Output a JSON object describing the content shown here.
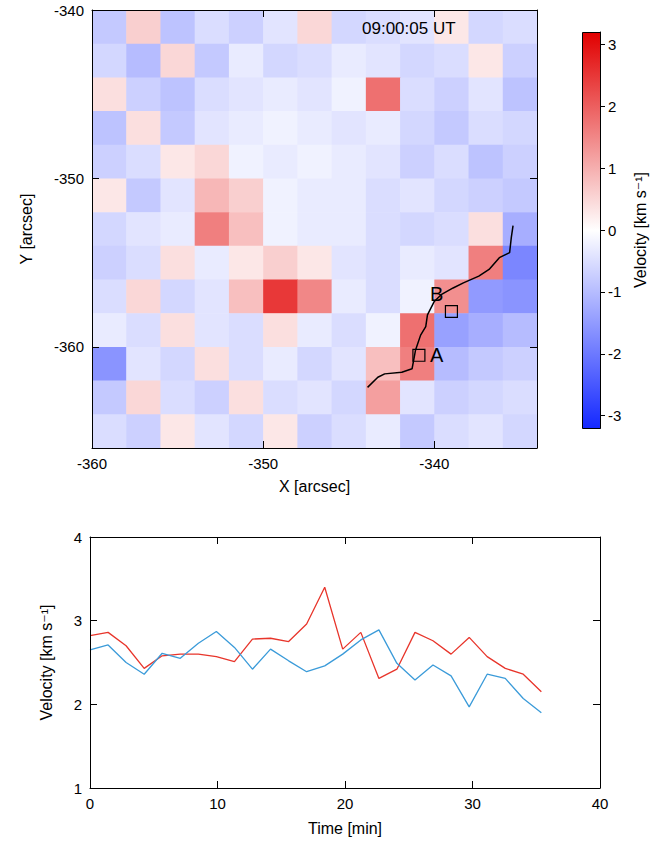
{
  "chart_data": [
    {
      "type": "heatmap",
      "xlabel": "X [arcsec]",
      "ylabel": "Y [arcsec]",
      "xlim": [
        -360,
        -334
      ],
      "ylim": [
        -366,
        -340
      ],
      "xticks": [
        -360,
        -350,
        -340
      ],
      "yticks": [
        -360,
        -350,
        -340
      ],
      "annotations": [
        "09:00:05 UT"
      ],
      "cells": {
        "x": [
          -359,
          -357,
          -355,
          -353,
          -351,
          -349,
          -347,
          -345,
          -343,
          -341,
          -339,
          -337,
          -335
        ],
        "y": [
          -341,
          -343,
          -345,
          -347,
          -349,
          -351,
          -353,
          -355,
          -357,
          -359,
          -361,
          -363,
          -365
        ],
        "values": [
          [
            -0.8,
            0.6,
            -0.9,
            -0.5,
            -0.7,
            -0.4,
            0.5,
            -0.6,
            -0.5,
            -0.4,
            0.3,
            -0.6,
            -0.5
          ],
          [
            -0.6,
            -1.0,
            0.5,
            -0.8,
            -0.3,
            -0.6,
            -0.5,
            -0.3,
            -0.4,
            -0.6,
            -0.5,
            0.3,
            -0.7
          ],
          [
            0.4,
            -0.7,
            -0.9,
            -0.5,
            -0.4,
            -0.3,
            -0.4,
            -0.2,
            1.8,
            -0.5,
            -0.7,
            -0.4,
            -0.9
          ],
          [
            -0.9,
            0.4,
            -0.8,
            -0.4,
            -0.3,
            -0.2,
            -0.3,
            -0.4,
            -0.3,
            -0.6,
            -0.8,
            -0.5,
            -0.6
          ],
          [
            -0.7,
            -0.5,
            0.3,
            0.5,
            -0.2,
            -0.3,
            -0.2,
            -0.3,
            -0.4,
            -0.7,
            -0.5,
            -0.9,
            -0.7
          ],
          [
            0.3,
            -0.8,
            -0.4,
            0.9,
            0.6,
            -0.2,
            -0.3,
            -0.3,
            -0.5,
            -0.4,
            -0.6,
            -0.7,
            -0.8
          ],
          [
            -0.6,
            -0.4,
            -0.3,
            1.6,
            0.8,
            -0.2,
            -0.3,
            -0.3,
            -0.5,
            -0.6,
            -0.5,
            0.4,
            -1.2
          ],
          [
            -0.7,
            -0.5,
            0.4,
            -0.3,
            0.3,
            0.6,
            0.3,
            -0.4,
            -0.5,
            -0.3,
            -0.4,
            1.6,
            -1.8
          ],
          [
            -0.5,
            0.5,
            -0.6,
            -0.4,
            0.8,
            2.5,
            1.5,
            -0.3,
            -0.5,
            -0.2,
            1.4,
            -1.5,
            -1.6
          ],
          [
            -0.3,
            -0.5,
            0.4,
            -0.4,
            -0.5,
            0.4,
            -0.3,
            -0.5,
            -0.2,
            1.8,
            -1.4,
            -1.2,
            -1.0
          ],
          [
            -1.6,
            -0.4,
            -0.6,
            0.4,
            -0.5,
            -0.3,
            -0.6,
            -0.4,
            0.8,
            1.6,
            -1.0,
            -0.8,
            -0.7
          ],
          [
            -0.8,
            0.5,
            -0.5,
            -0.7,
            0.4,
            -0.5,
            -0.4,
            -0.6,
            1.2,
            -0.4,
            -0.7,
            -0.6,
            -0.5
          ],
          [
            -0.5,
            -0.7,
            0.3,
            -0.4,
            -0.6,
            0.3,
            -0.7,
            -0.5,
            -0.3,
            -0.8,
            -0.5,
            -0.4,
            -0.6
          ]
        ]
      },
      "colorbar": {
        "label": "Velocity [km s⁻¹]",
        "range": [
          -3.2,
          3.2
        ],
        "ticks": [
          -3,
          -2,
          -1,
          0,
          1,
          2,
          3
        ]
      },
      "contour": {
        "color": "#000000",
        "x": [
          -343.9,
          -343.3,
          -342.9,
          -341.9,
          -341.3,
          -341.1,
          -340.8,
          -340.5,
          -340.4,
          -340.0,
          -339.6,
          -338.9,
          -338.3,
          -337.4,
          -336.8,
          -336.2,
          -335.6,
          -335.5,
          -335.4
        ],
        "y": [
          -362.4,
          -361.8,
          -361.6,
          -361.5,
          -361.3,
          -360.2,
          -359.3,
          -358.8,
          -358.1,
          -357.3,
          -356.9,
          -356.5,
          -356.2,
          -355.8,
          -355.4,
          -354.7,
          -354.4,
          -353.5,
          -352.8
        ]
      },
      "boxes": [
        {
          "label": "A",
          "x": -340.9,
          "y": -360.5,
          "size": 0.7
        },
        {
          "label": "B",
          "x": -339.0,
          "y": -357.9,
          "size": 0.7
        }
      ]
    },
    {
      "type": "line",
      "xlabel": "Time [min]",
      "ylabel": "Velocity [km s⁻¹]",
      "xlim": [
        0,
        40
      ],
      "ylim": [
        1,
        4
      ],
      "xticks": [
        0,
        10,
        20,
        30,
        40
      ],
      "yticks": [
        1,
        2,
        3,
        4
      ],
      "grid": false,
      "x": [
        0,
        1.42,
        2.83,
        4.25,
        5.66,
        7.08,
        8.5,
        9.91,
        11.33,
        12.74,
        14.16,
        15.58,
        16.99,
        18.41,
        19.82,
        21.24,
        22.66,
        24.07,
        25.49,
        26.9,
        28.32,
        29.74,
        31.15,
        32.57,
        33.98,
        35.4
      ],
      "series": [
        {
          "color": "#e8352b",
          "values": [
            2.82,
            2.86,
            2.7,
            2.43,
            2.58,
            2.6,
            2.6,
            2.57,
            2.51,
            2.78,
            2.79,
            2.75,
            2.96,
            3.4,
            2.66,
            2.86,
            2.31,
            2.42,
            2.86,
            2.76,
            2.6,
            2.8,
            2.57,
            2.43,
            2.36,
            2.15
          ]
        },
        {
          "color": "#3b9bd9",
          "values": [
            2.65,
            2.71,
            2.5,
            2.36,
            2.61,
            2.55,
            2.73,
            2.87,
            2.68,
            2.42,
            2.66,
            2.52,
            2.39,
            2.46,
            2.6,
            2.77,
            2.89,
            2.49,
            2.29,
            2.47,
            2.34,
            1.97,
            2.36,
            2.31,
            2.07,
            1.9
          ]
        }
      ]
    }
  ]
}
